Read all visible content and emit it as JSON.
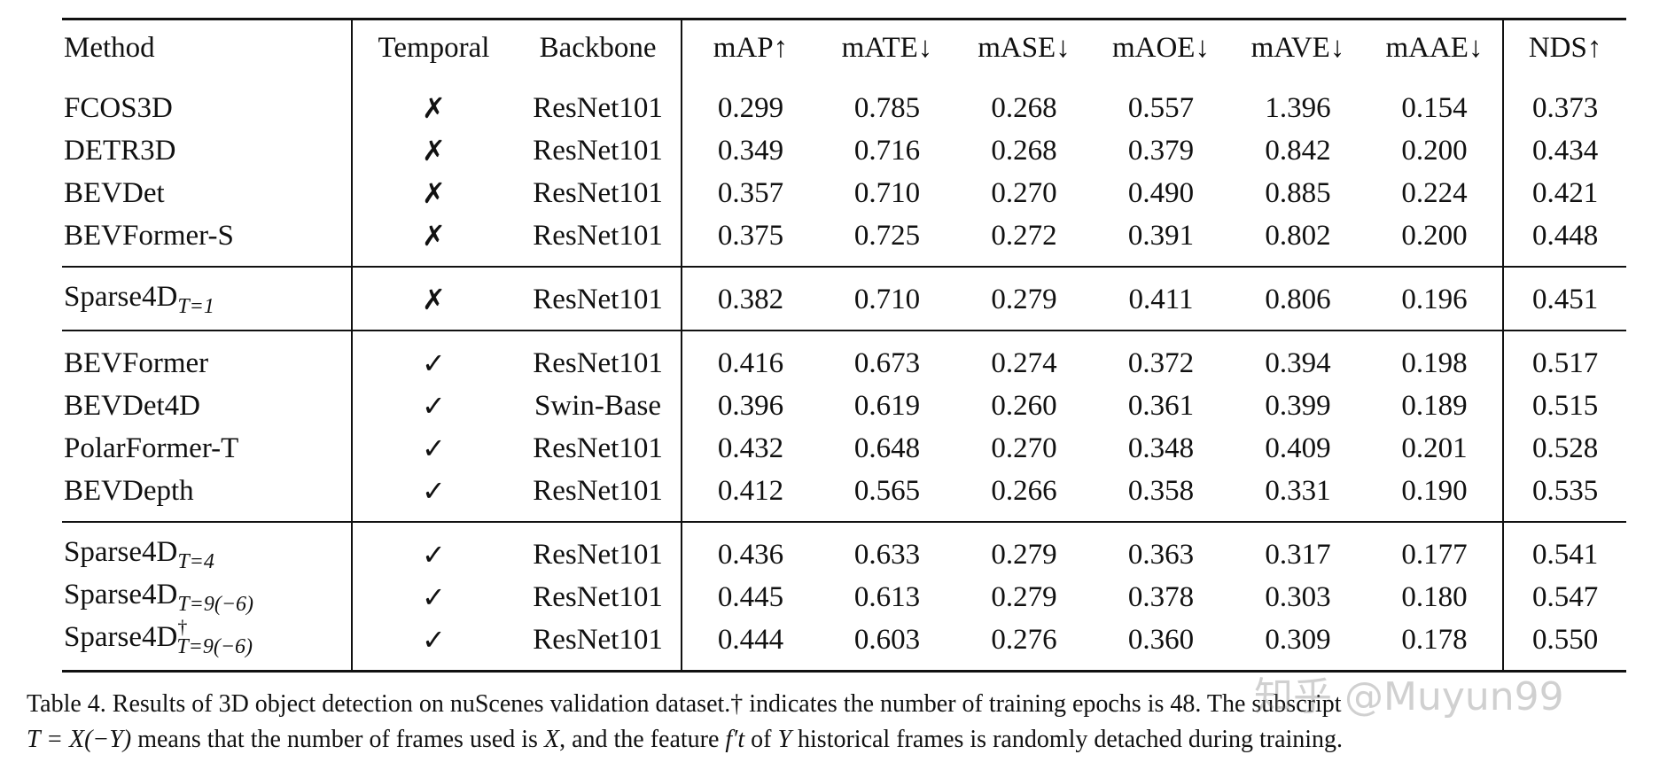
{
  "table": {
    "headers": {
      "method": "Method",
      "temporal": "Temporal",
      "backbone": "Backbone",
      "map": "mAP↑",
      "mate": "mATE↓",
      "mase": "mASE↓",
      "maoe": "mAOE↓",
      "mave": "mAVE↓",
      "maae": "mAAE↓",
      "nds": "NDS↑"
    },
    "rows": [
      {
        "method": "FCOS3D",
        "method_sub": "",
        "method_sup": "",
        "temporal": "✗",
        "backbone": "ResNet101",
        "map": "0.299",
        "mate": "0.785",
        "mase": "0.268",
        "maoe": "0.557",
        "mave": "1.396",
        "maae": "0.154",
        "nds": "0.373"
      },
      {
        "method": "DETR3D",
        "method_sub": "",
        "method_sup": "",
        "temporal": "✗",
        "backbone": "ResNet101",
        "map": "0.349",
        "mate": "0.716",
        "mase": "0.268",
        "maoe": "0.379",
        "mave": "0.842",
        "maae": "0.200",
        "nds": "0.434"
      },
      {
        "method": "BEVDet",
        "method_sub": "",
        "method_sup": "",
        "temporal": "✗",
        "backbone": "ResNet101",
        "map": "0.357",
        "mate": "0.710",
        "mase": "0.270",
        "maoe": "0.490",
        "mave": "0.885",
        "maae": "0.224",
        "nds": "0.421"
      },
      {
        "method": "BEVFormer-S",
        "method_sub": "",
        "method_sup": "",
        "temporal": "✗",
        "backbone": "ResNet101",
        "map": "0.375",
        "mate": "0.725",
        "mase": "0.272",
        "maoe": "0.391",
        "mave": "0.802",
        "maae": "0.200",
        "nds": "0.448"
      },
      {
        "method": "Sparse4D",
        "method_sub": "T=1",
        "method_sup": "",
        "temporal": "✗",
        "backbone": "ResNet101",
        "map": "0.382",
        "mate": "0.710",
        "mase": "0.279",
        "maoe": "0.411",
        "mave": "0.806",
        "maae": "0.196",
        "nds": "0.451"
      },
      {
        "method": "BEVFormer",
        "method_sub": "",
        "method_sup": "",
        "temporal": "✓",
        "backbone": "ResNet101",
        "map": "0.416",
        "mate": "0.673",
        "mase": "0.274",
        "maoe": "0.372",
        "mave": "0.394",
        "maae": "0.198",
        "nds": "0.517"
      },
      {
        "method": "BEVDet4D",
        "method_sub": "",
        "method_sup": "",
        "temporal": "✓",
        "backbone": "Swin-Base",
        "map": "0.396",
        "mate": "0.619",
        "mase": "0.260",
        "maoe": "0.361",
        "mave": "0.399",
        "maae": "0.189",
        "nds": "0.515"
      },
      {
        "method": "PolarFormer-T",
        "method_sub": "",
        "method_sup": "",
        "temporal": "✓",
        "backbone": "ResNet101",
        "map": "0.432",
        "mate": "0.648",
        "mase": "0.270",
        "maoe": "0.348",
        "mave": "0.409",
        "maae": "0.201",
        "nds": "0.528"
      },
      {
        "method": "BEVDepth",
        "method_sub": "",
        "method_sup": "",
        "temporal": "✓",
        "backbone": "ResNet101",
        "map": "0.412",
        "mate": "0.565",
        "mase": "0.266",
        "maoe": "0.358",
        "mave": "0.331",
        "maae": "0.190",
        "nds": "0.535"
      },
      {
        "method": "Sparse4D",
        "method_sub": "T=4",
        "method_sup": "",
        "temporal": "✓",
        "backbone": "ResNet101",
        "map": "0.436",
        "mate": "0.633",
        "mase": "0.279",
        "maoe": "0.363",
        "mave": "0.317",
        "maae": "0.177",
        "nds": "0.541"
      },
      {
        "method": "Sparse4D",
        "method_sub": "T=9(−6)",
        "method_sup": "",
        "temporal": "✓",
        "backbone": "ResNet101",
        "map": "0.445",
        "mate": "0.613",
        "mase": "0.279",
        "maoe": "0.378",
        "mave": "0.303",
        "maae": "0.180",
        "nds": "0.547"
      },
      {
        "method": "Sparse4D",
        "method_sub": "T=9(−6)",
        "method_sup": "†",
        "temporal": "✓",
        "backbone": "ResNet101",
        "map": "0.444",
        "mate": "0.603",
        "mase": "0.276",
        "maoe": "0.360",
        "mave": "0.309",
        "maae": "0.178",
        "nds": "0.550"
      }
    ]
  },
  "caption": {
    "part1": "Table 4.  Results of 3D object detection on nuScenes validation dataset.† indicates the number of training epochs is 48. The subscript",
    "math1": "T = X(−Y)",
    "part2": " means that the number of frames used is ",
    "math2": "X",
    "part3": ", and the feature ",
    "math3": "f′t",
    "part4": " of ",
    "math4": "Y",
    "part5": " historical frames is randomly detached during training."
  },
  "watermark": "知乎 @Muyun99"
}
